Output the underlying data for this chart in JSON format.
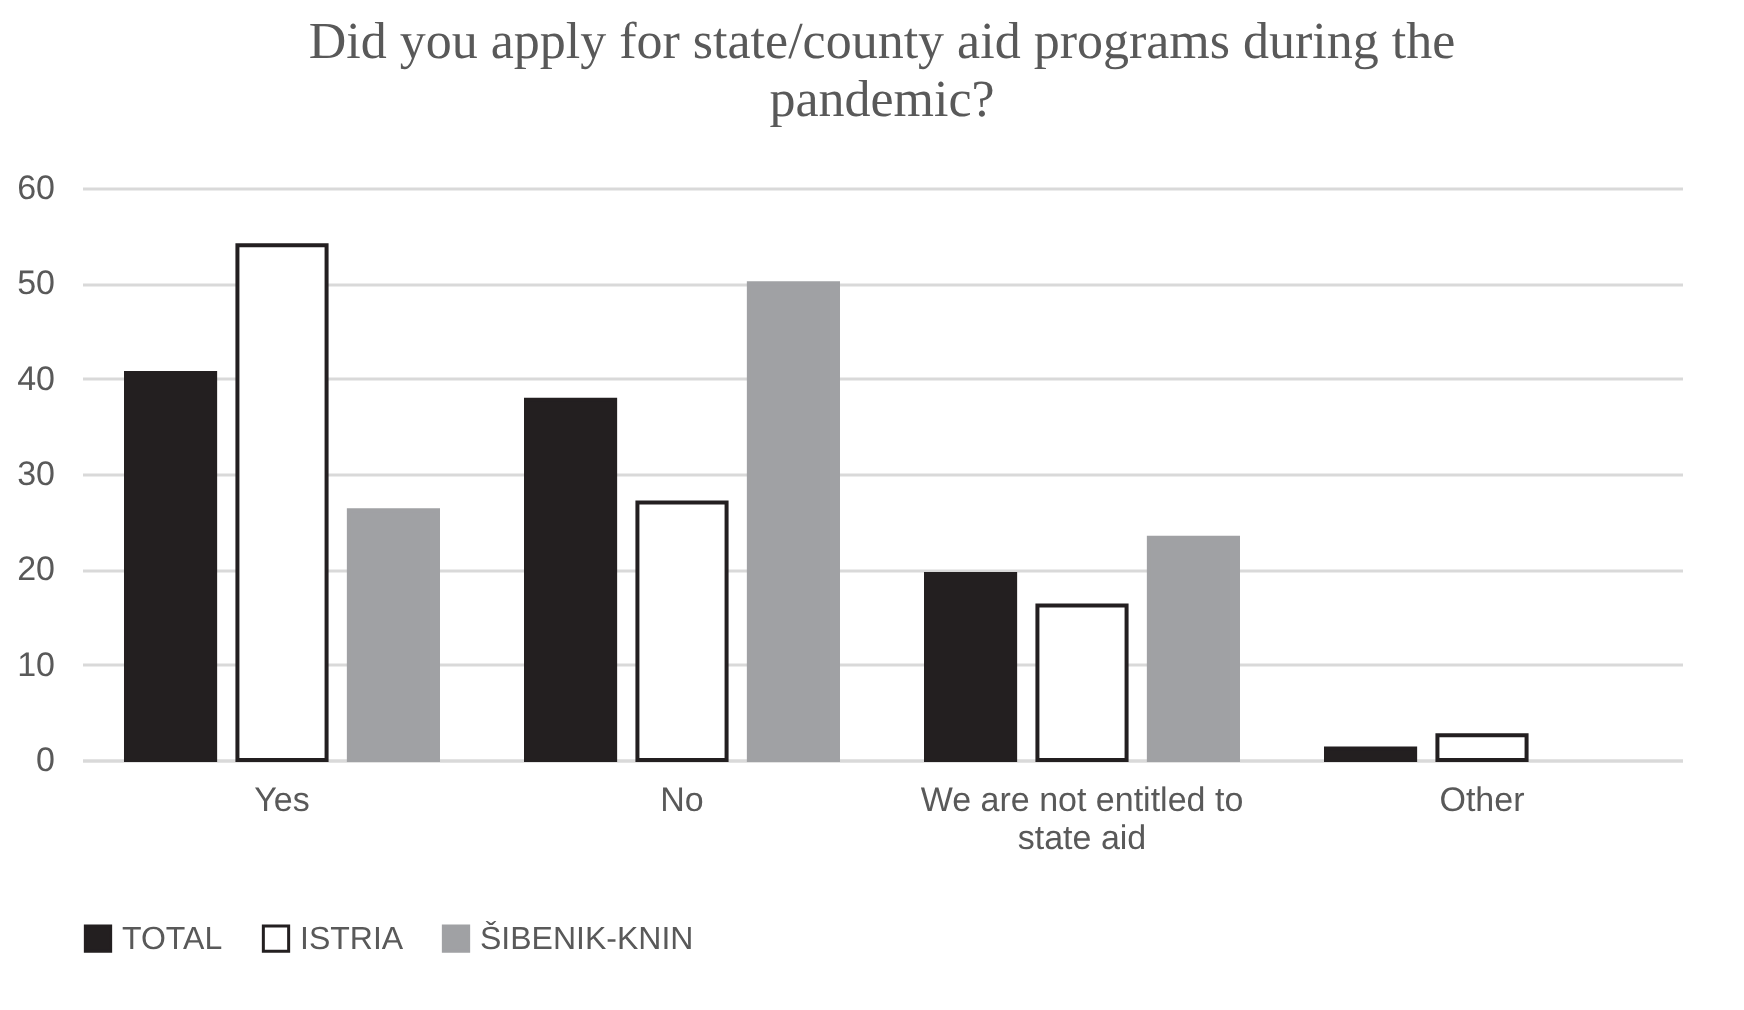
{
  "chart_data": {
    "type": "bar",
    "title": "Did you apply for state/county aid programs during the pandemic?",
    "categories": [
      "Yes",
      "No",
      "We are not entitled to state aid",
      "Other"
    ],
    "series": [
      {
        "name": "TOTAL",
        "color": "#231f20",
        "values": [
          40.6,
          37.8,
          19.5,
          1.2
        ]
      },
      {
        "name": "ISTRIA",
        "color": "#ffffff",
        "values": [
          54.0,
          27.0,
          16.2,
          2.6
        ]
      },
      {
        "name": "ŠIBENIK-KNIN",
        "color": "#a0a1a4",
        "values": [
          26.2,
          50.0,
          23.3,
          null
        ]
      }
    ],
    "ylim": [
      0,
      60
    ],
    "yticks": [
      0,
      10,
      20,
      30,
      40,
      50,
      60
    ],
    "grid": "y",
    "legend": "bottom"
  }
}
